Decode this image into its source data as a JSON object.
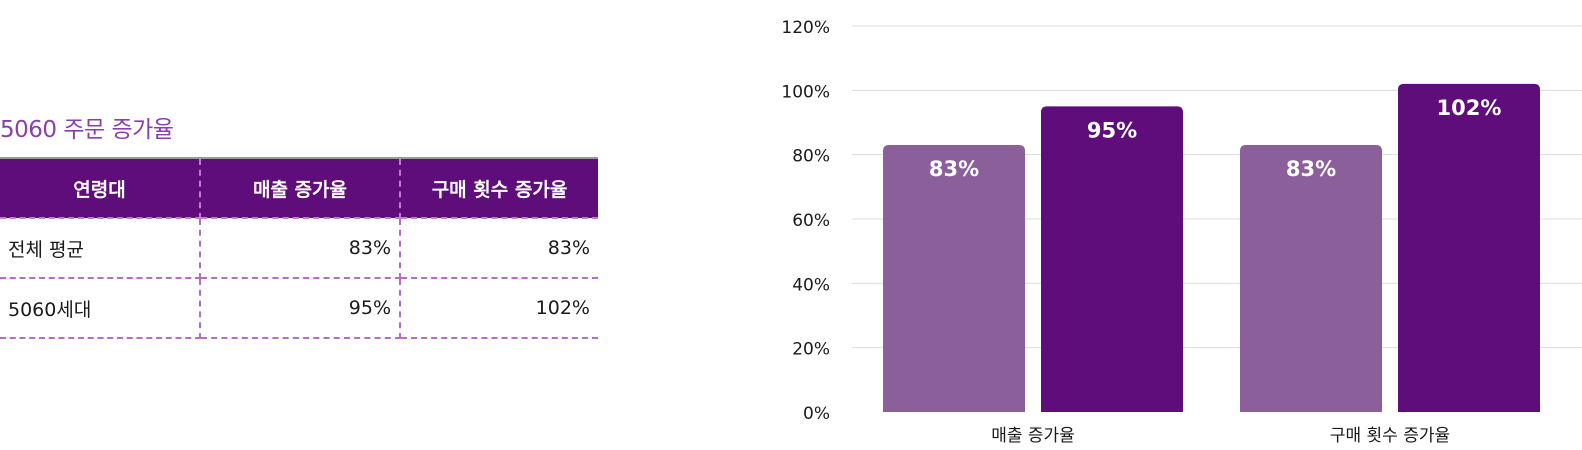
{
  "table": {
    "title": "5060 주문 증가율",
    "headers": [
      "연령대",
      "매출 증가율",
      "구매 횟수 증가율"
    ],
    "rows": [
      [
        "전체 평균",
        "83%",
        "83%"
      ],
      [
        "5060세대",
        "95%",
        "102%"
      ]
    ]
  },
  "colors": {
    "title": "#8b3fae",
    "header_bg": "#5e0d7b",
    "series_average": "#8a5f9a",
    "series_5060": "#5e0d7b",
    "grid": "#dcdcdc"
  },
  "chart_data": {
    "type": "bar",
    "categories": [
      "매출 증가율",
      "구매 횟수 증가율"
    ],
    "series": [
      {
        "values": [
          83,
          83
        ]
      },
      {
        "values": [
          95,
          102
        ]
      }
    ],
    "data_labels": [
      [
        "83%",
        "83%"
      ],
      [
        "95%",
        "102%"
      ]
    ],
    "ylim": [
      0,
      120
    ],
    "yticks": [
      0,
      20,
      40,
      60,
      80,
      100,
      120
    ],
    "ytick_labels": [
      "0%",
      "20%",
      "40%",
      "60%",
      "80%",
      "100%",
      "120%"
    ],
    "grid": true,
    "legend": "none",
    "title": "",
    "xlabel": "",
    "ylabel": ""
  }
}
